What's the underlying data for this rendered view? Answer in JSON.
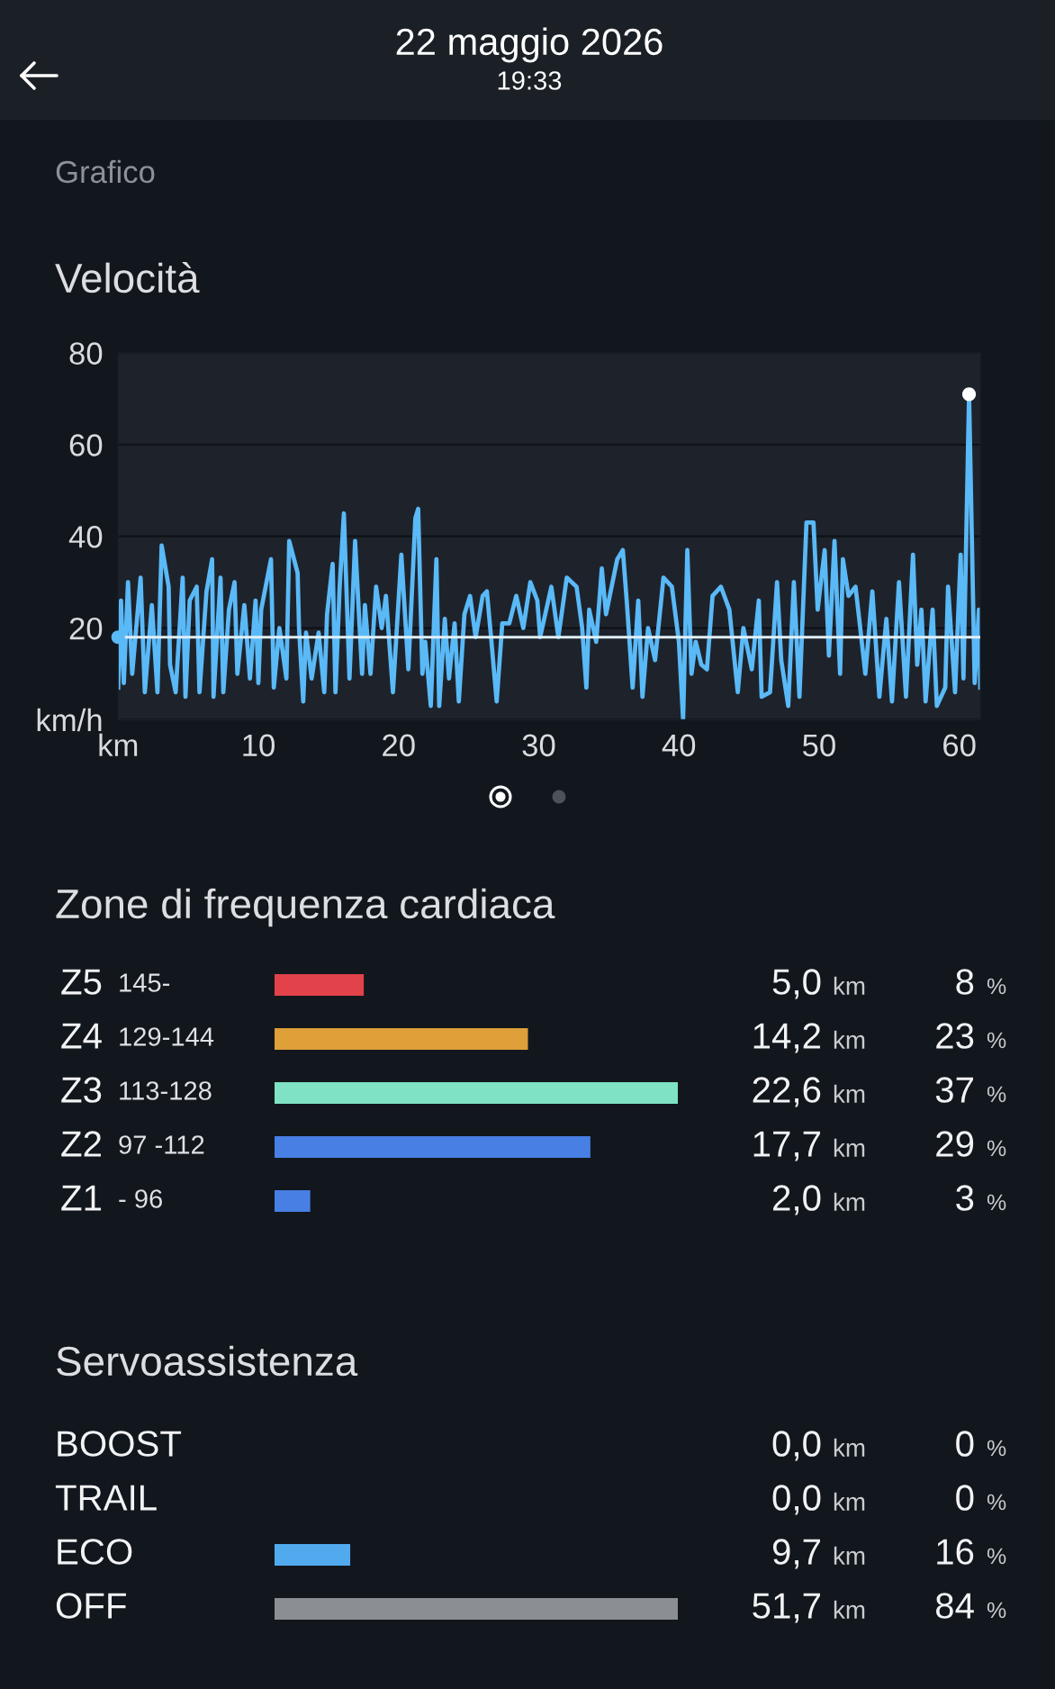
{
  "chart_data": [
    {
      "type": "line",
      "title": "Velocità",
      "annotations": [
        "22 maggio 2026",
        "19:33",
        "Grafico"
      ],
      "xlim": [
        0,
        61.5
      ],
      "xticks": [
        {
          "value": 0,
          "label": "km"
        },
        10,
        20,
        30,
        40,
        50,
        60
      ],
      "ylim": [
        0,
        80
      ],
      "yticks": [
        {
          "value": 0,
          "label": "km/h"
        },
        20,
        40,
        60,
        80
      ],
      "grid": "y",
      "ref_lines": [
        {
          "axis": "y",
          "value": 18,
          "color": "#e0f0f8"
        }
      ],
      "series": [
        {
          "color": "#5ab9f7",
          "x": [
            0.0,
            0.2,
            0.4,
            0.7,
            1.0,
            1.6,
            1.9,
            2.4,
            2.8,
            3.1,
            3.6,
            3.7,
            4.1,
            4.6,
            4.8,
            5.1,
            5.6,
            5.8,
            6.3,
            6.7,
            6.8,
            7.3,
            7.5,
            7.9,
            8.3,
            8.5,
            9.0,
            9.4,
            9.8,
            10.0,
            10.2,
            10.9,
            11.1,
            11.5,
            12.0,
            12.2,
            12.8,
            12.9,
            13.2,
            13.4,
            13.8,
            14.3,
            14.7,
            14.9,
            15.3,
            15.5,
            15.8,
            16.1,
            16.5,
            16.9,
            17.4,
            17.6,
            18.0,
            18.4,
            18.8,
            19.1,
            19.6,
            20.2,
            20.7,
            21.2,
            21.4,
            21.7,
            21.9,
            22.3,
            22.7,
            22.9,
            23.3,
            23.6,
            24.0,
            24.3,
            24.7,
            25.1,
            25.5,
            26.0,
            26.3,
            26.6,
            27.0,
            27.4,
            27.9,
            28.4,
            28.9,
            29.4,
            29.9,
            30.1,
            30.9,
            31.4,
            32.0,
            32.7,
            33.1,
            33.4,
            33.6,
            34.1,
            34.5,
            34.8,
            35.6,
            36.0,
            36.3,
            36.7,
            37.1,
            37.4,
            37.8,
            38.3,
            38.9,
            39.5,
            40.0,
            40.3,
            40.6,
            40.9,
            41.2,
            41.6,
            42.0,
            42.4,
            43.0,
            43.6,
            44.2,
            44.6,
            45.2,
            45.7,
            45.9,
            46.5,
            47.0,
            47.3,
            47.8,
            48.2,
            48.6,
            49.1,
            49.6,
            49.9,
            50.4,
            50.7,
            51.1,
            51.5,
            51.7,
            52.1,
            52.6,
            52.9,
            53.3,
            53.8,
            54.3,
            54.8,
            55.2,
            55.7,
            56.2,
            56.7,
            57.0,
            57.3,
            57.6,
            58.1,
            58.4,
            59.0,
            59.2,
            59.7,
            60.1,
            60.3,
            60.7,
            61.1,
            61.4,
            61.5
          ],
          "values": [
            7,
            26,
            8,
            30,
            10,
            31,
            6,
            25,
            6,
            38,
            29,
            12,
            6,
            31,
            5,
            26,
            29,
            6,
            28,
            35,
            5,
            31,
            6,
            24,
            30,
            10,
            25,
            9,
            26,
            8,
            24,
            35,
            7,
            20,
            9,
            39,
            32,
            20,
            4,
            19,
            9,
            19,
            6,
            23,
            34,
            6,
            29,
            45,
            9,
            39,
            10,
            25,
            10,
            29,
            20,
            27,
            6,
            36,
            11,
            44,
            46,
            10,
            17,
            3,
            35,
            3,
            22,
            9,
            21,
            4,
            23,
            27,
            18,
            27,
            28,
            18,
            4,
            21,
            21,
            27,
            20,
            30,
            26,
            18,
            29,
            18,
            31,
            29,
            20,
            7,
            24,
            17,
            33,
            23,
            35,
            37,
            25,
            7,
            26,
            5,
            20,
            13,
            31,
            29,
            17,
            0,
            37,
            10,
            17,
            12,
            11,
            27,
            29,
            24,
            6,
            20,
            11,
            26,
            5,
            6,
            30,
            13,
            3,
            30,
            5,
            43,
            43,
            24,
            37,
            14,
            39,
            10,
            35,
            27,
            29,
            21,
            10,
            28,
            5,
            22,
            4,
            30,
            5,
            36,
            12,
            24,
            4,
            24,
            3,
            7,
            29,
            6,
            36,
            9,
            71,
            8,
            24,
            7
          ]
        },
        {
          "type": "scatter",
          "marker": "circle",
          "color": "#ffffff",
          "x": [
            60.7
          ],
          "values": [
            71
          ]
        },
        {
          "type": "scatter",
          "marker": "circle",
          "color": "#5ab9f7",
          "x": [
            0
          ],
          "values": [
            18
          ]
        }
      ]
    },
    {
      "type": "bar",
      "orientation": "horizontal",
      "title": "Zone di frequenza cardiaca",
      "categories": [
        "Z5 145-",
        "Z4 129-144",
        "Z3 113-128",
        "Z2 97 -112",
        "Z1 - 96"
      ],
      "values": [
        5.0,
        14.2,
        22.6,
        17.7,
        2.0
      ],
      "colors": [
        "#e2424a",
        "#dfa03a",
        "#80e2c4",
        "#477fe4",
        "#477fe4"
      ],
      "value_labels": [
        "5,0 km",
        "14,2 km",
        "22,6 km",
        "17,7 km",
        "2,0 km"
      ],
      "y2_categories": [
        "8 %",
        "23 %",
        "37 %",
        "29 %",
        "3 %"
      ]
    },
    {
      "type": "bar",
      "orientation": "horizontal",
      "title": "Servoassistenza",
      "categories": [
        "BOOST",
        "TRAIL",
        "ECO",
        "OFF"
      ],
      "values": [
        0.0,
        0.0,
        9.7,
        51.7
      ],
      "colors": [
        "#52aaee",
        "#52aaee",
        "#52aaee",
        "#8b8f94"
      ],
      "value_labels": [
        "0,0 km",
        "0,0 km",
        "9,7 km",
        "51,7 km"
      ],
      "y2_categories": [
        "0 %",
        "0 %",
        "16 %",
        "84 %"
      ]
    }
  ]
}
